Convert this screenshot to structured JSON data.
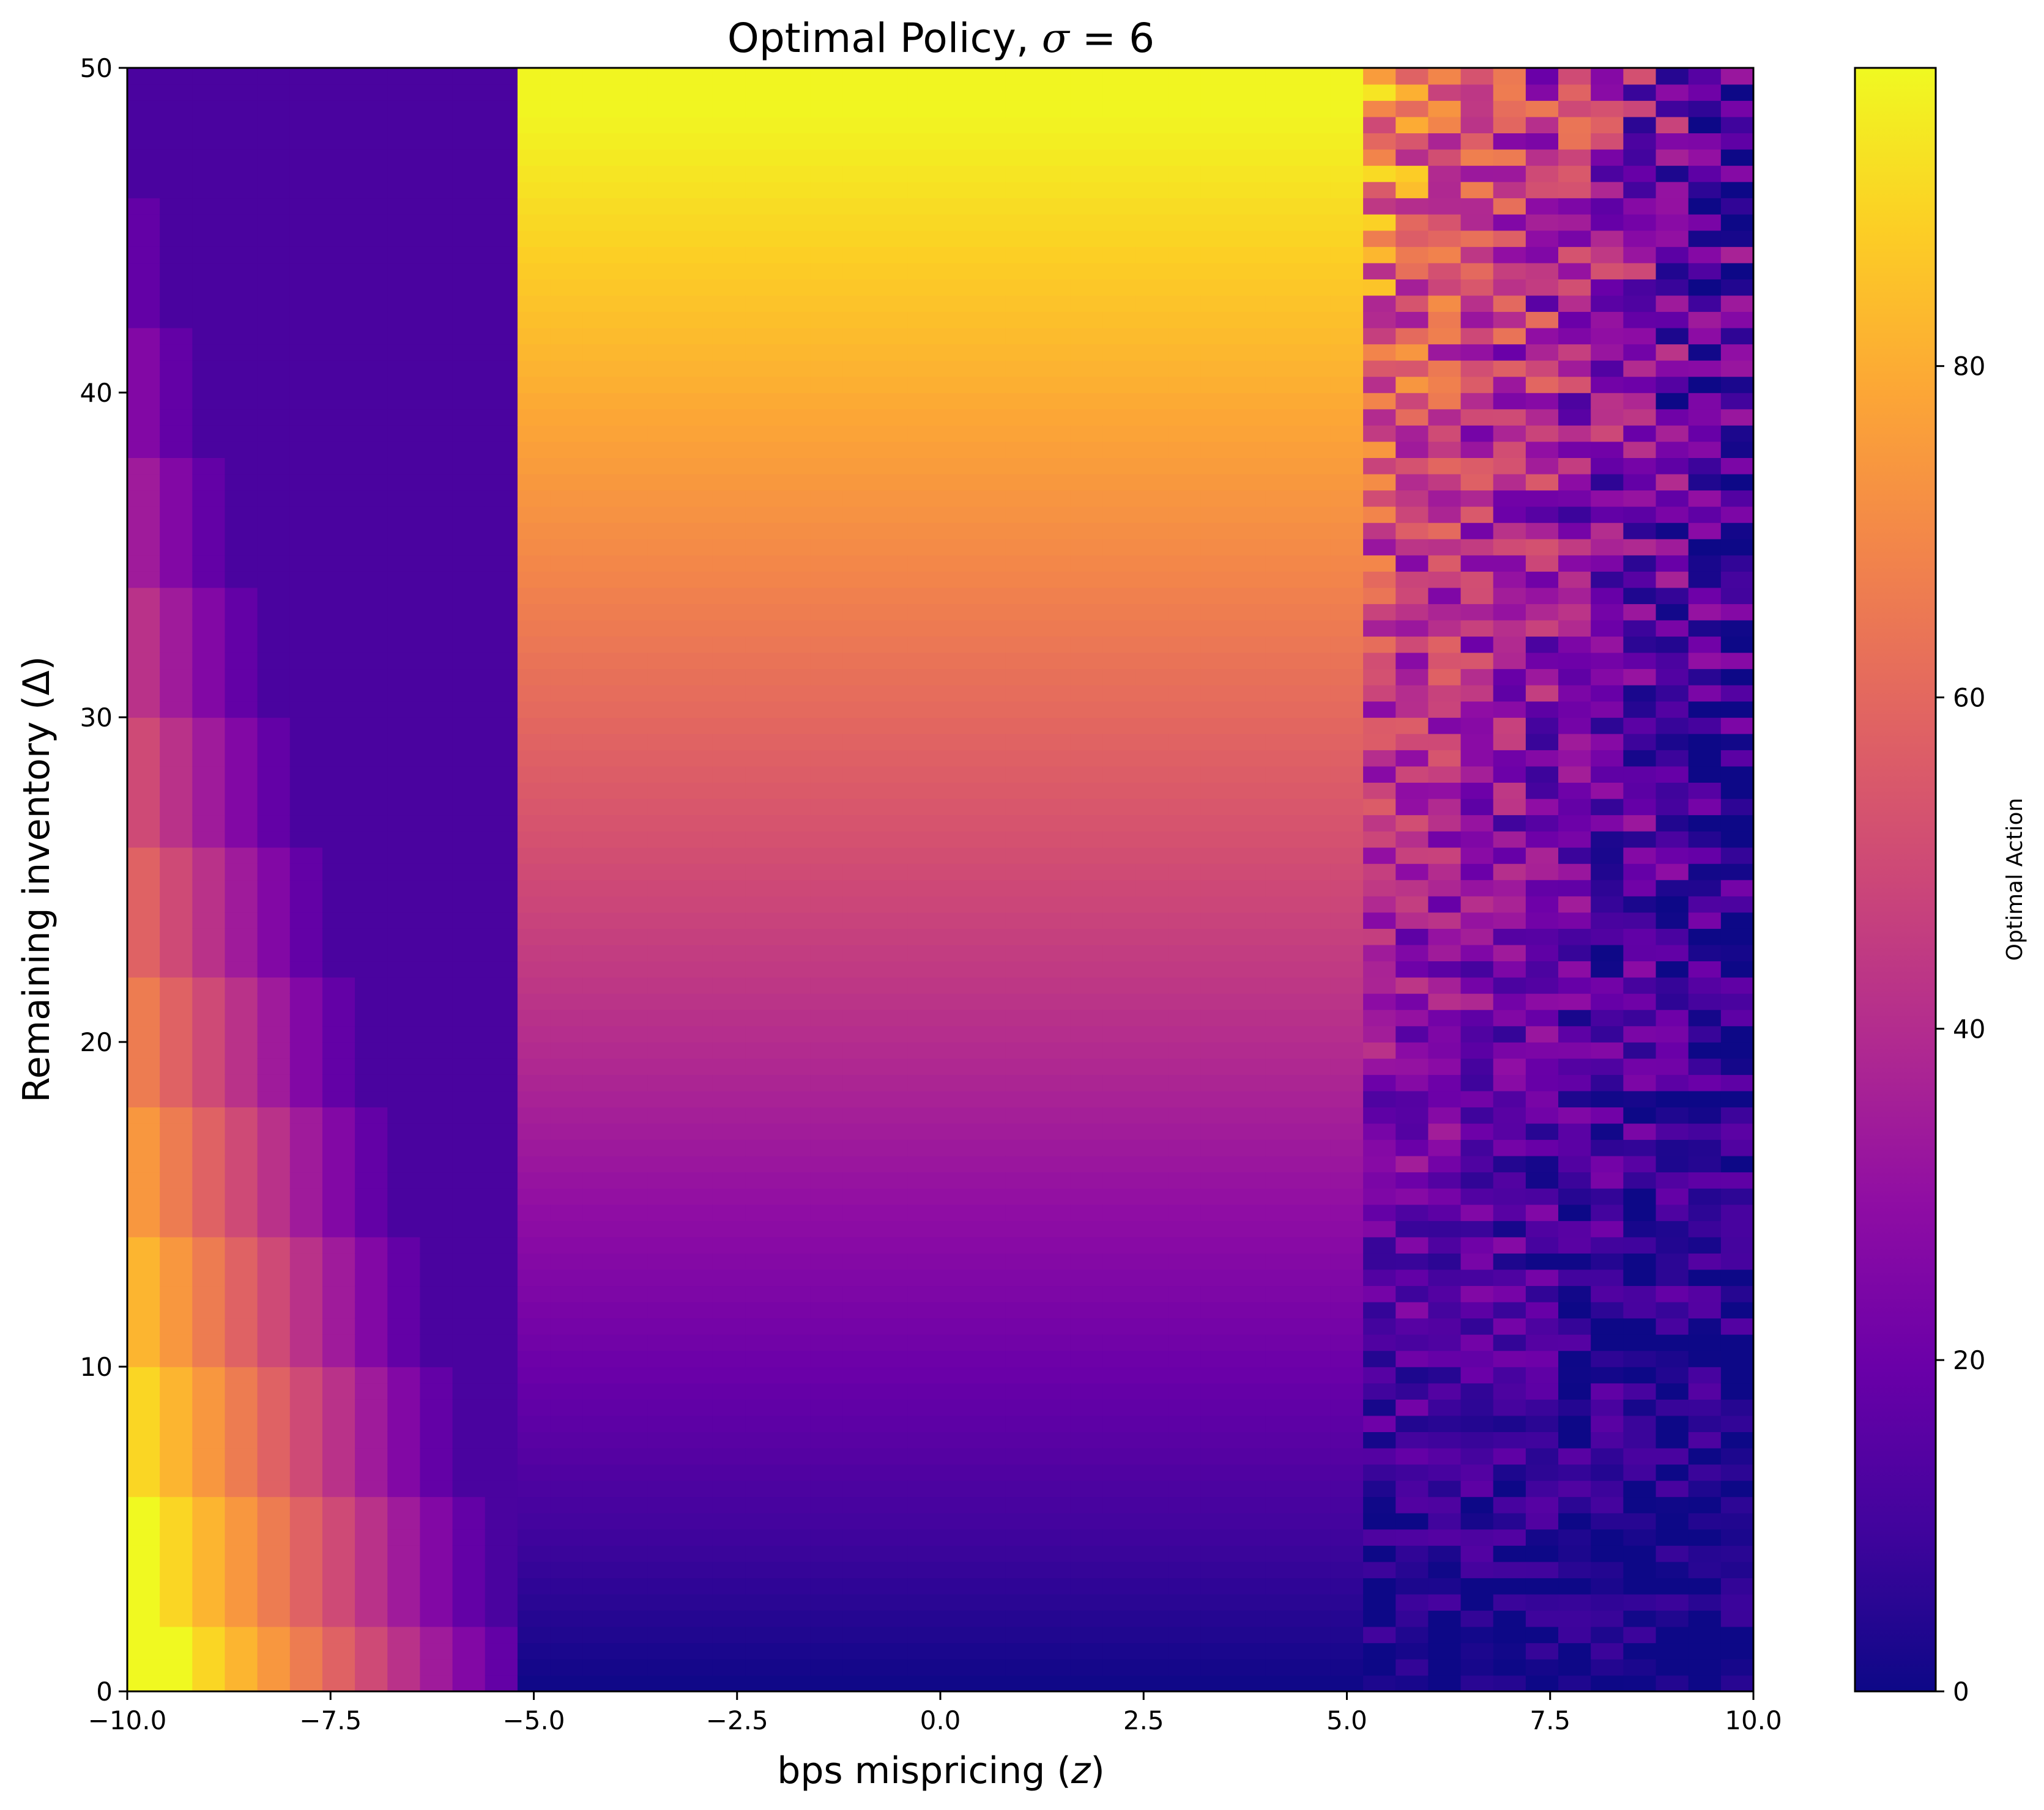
{
  "chart_data": {
    "type": "heatmap",
    "title": "Optimal Policy, σ = 6",
    "title_prefix": "Optimal Policy, ",
    "title_symbol": "σ",
    "title_suffix": " = 6",
    "xlabel": "bps mispricing (z)",
    "xlabel_prefix": "bps mispricing (",
    "xlabel_symbol": "z",
    "xlabel_suffix": ")",
    "ylabel": "Remaining inventory (Δ)",
    "xlim": [
      -10.0,
      10.0
    ],
    "ylim": [
      0,
      50
    ],
    "x_ticks": [
      -10.0,
      -7.5,
      -5.0,
      -2.5,
      0.0,
      2.5,
      5.0,
      7.5,
      10.0
    ],
    "x_tick_labels": [
      "−10.0",
      "−7.5",
      "−5.0",
      "−2.5",
      "0.0",
      "2.5",
      "5.0",
      "7.5",
      "10.0"
    ],
    "y_ticks": [
      0,
      10,
      20,
      30,
      40,
      50
    ],
    "y_tick_labels": [
      "0",
      "10",
      "20",
      "30",
      "40",
      "50"
    ],
    "colormap": "plasma",
    "colorbar": {
      "label": "Optimal Action",
      "range": [
        0,
        98
      ],
      "ticks": [
        0,
        20,
        40,
        60,
        80
      ],
      "tick_labels": [
        "0",
        "20",
        "40",
        "60",
        "80"
      ]
    },
    "grid_shape": {
      "x_bins": 50,
      "y_bins": 100
    },
    "regions": [
      {
        "z_range": [
          -10.0,
          -5.2
        ],
        "pattern": "deterministic; left of boundary z ≈ -9.6 - 0.1·Δ the action is 98 (maximum), right of it the action falls in steps toward ~15 near z = -5.2"
      },
      {
        "z_range": [
          -5.2,
          5.2
        ],
        "pattern": "deterministic; action ≈ 2·Δ, independent of z (≈ 0 at Δ = 0, ≈ 80 at Δ = 40, ≈ 95 at Δ = 50)"
      },
      {
        "z_range": [
          5.2,
          10.0
        ],
        "pattern": "noisy; action decreases with z and increases with Δ, mostly 0–20 at low inventory, 20–80 at high inventory"
      }
    ],
    "grid": false
  }
}
